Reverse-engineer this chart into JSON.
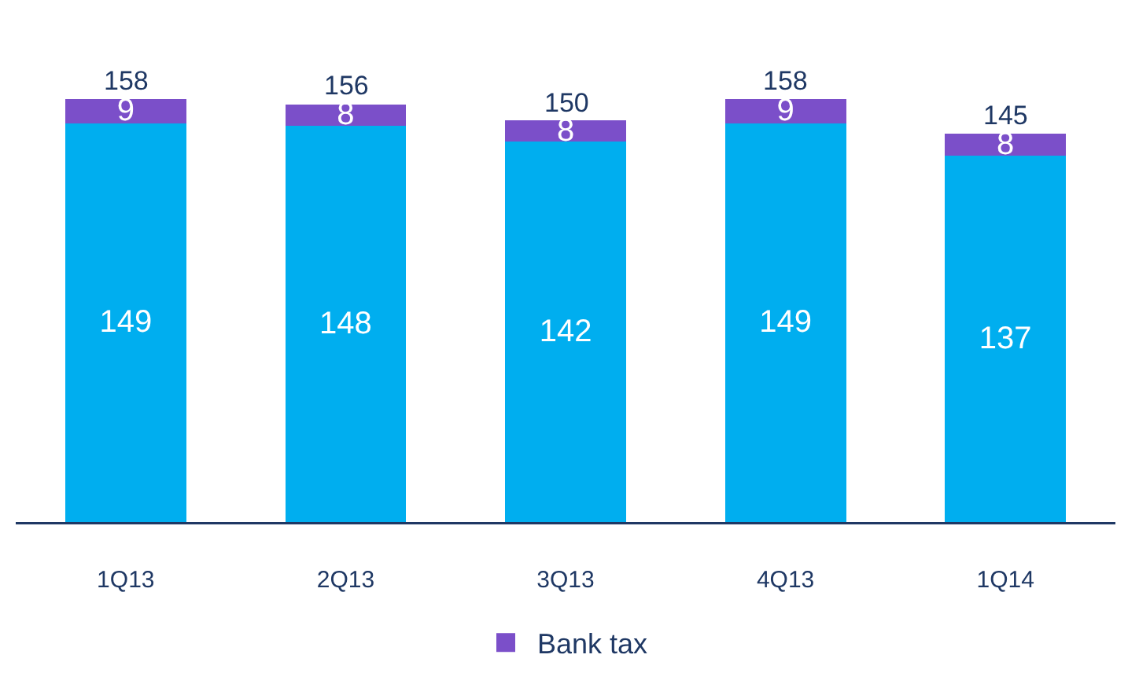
{
  "chart_data": {
    "type": "bar",
    "stacked": true,
    "categories": [
      "1Q13",
      "2Q13",
      "3Q13",
      "4Q13",
      "1Q14"
    ],
    "series": [
      {
        "color": "#00aeef",
        "values": [
          149,
          148,
          142,
          149,
          137
        ]
      },
      {
        "name": "Bank tax",
        "color": "#7b4fc9",
        "values": [
          9,
          8,
          8,
          9,
          8
        ]
      }
    ],
    "data_labels": true,
    "totals": [
      "158",
      "156",
      "150",
      "158",
      "145"
    ],
    "legend": "bottom",
    "grid": false
  }
}
